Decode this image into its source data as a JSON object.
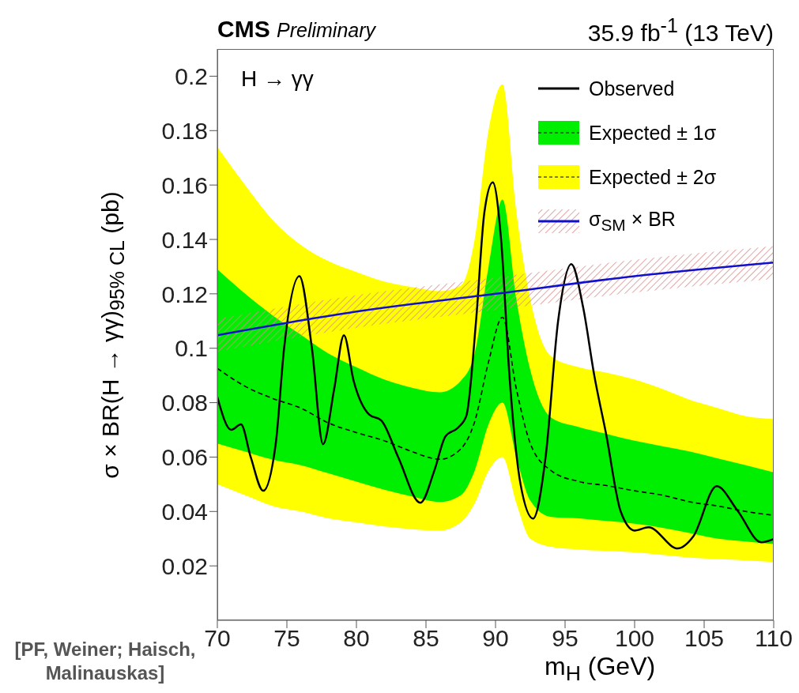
{
  "chart_data": {
    "type": "line",
    "title": "CMS",
    "subtitle": "Preliminary",
    "xlabel": "m$_{H}$ (GeV)",
    "ylabel": "σ × BR(H → γγ)$_{95% CL}$ (pb)",
    "annotations": [
      "35.9 fb$^{-1}$ (13 TeV)",
      "H → γγ",
      "[PF, Weiner; Haisch, Malinauskas]"
    ],
    "xlim": [
      70,
      110
    ],
    "xticks": [
      70,
      75,
      80,
      85,
      90,
      95,
      100,
      105,
      110
    ],
    "ylim": [
      0,
      0.21
    ],
    "yticks": [
      0.02,
      0.04,
      0.06,
      0.08,
      0.1,
      0.12,
      0.14,
      0.16,
      0.18,
      0.2
    ],
    "grid": false,
    "legend": "top right",
    "marker": "none",
    "series": [
      {
        "name": "Observed",
        "line_style": "solid",
        "color": "#000000",
        "x": [
          70,
          71.0,
          71.7,
          72.4,
          73.3,
          74.2,
          74.8,
          75.9,
          76.8,
          77.6,
          78.4,
          79.1,
          79.8,
          80.9,
          81.8,
          83.0,
          84.6,
          85.6,
          86.4,
          87.3,
          87.9,
          88.6,
          89.2,
          89.8,
          90.4,
          91.0,
          91.8,
          92.7,
          93.6,
          94.5,
          95.45,
          96.3,
          97.1,
          97.95,
          99.0,
          100,
          101,
          103.1,
          104.2,
          105.9,
          107.4,
          109.1,
          110
        ],
        "values": [
          0.082,
          0.07,
          0.072,
          0.06,
          0.0476,
          0.065,
          0.1,
          0.1265,
          0.1,
          0.0647,
          0.085,
          0.1048,
          0.088,
          0.0757,
          0.0734,
          0.06,
          0.0432,
          0.055,
          0.0676,
          0.0708,
          0.0751,
          0.11,
          0.15,
          0.161,
          0.14,
          0.09,
          0.05,
          0.0374,
          0.06,
          0.11,
          0.1309,
          0.115,
          0.09,
          0.0685,
          0.04,
          0.033,
          0.0342,
          0.0264,
          0.0307,
          0.0493,
          0.0403,
          0.0287,
          0.0299
        ]
      },
      {
        "line_style": "dashed",
        "color": "#000000",
        "x": [
          70,
          72,
          74,
          76,
          78,
          80,
          82,
          84,
          86,
          87.5,
          88.5,
          89.5,
          90.5,
          91.5,
          92.5,
          94,
          96,
          98,
          100,
          102,
          104,
          106,
          108,
          110
        ],
        "values": [
          0.0926,
          0.086,
          0.0815,
          0.078,
          0.0725,
          0.069,
          0.066,
          0.062,
          0.0592,
          0.063,
          0.073,
          0.095,
          0.1114,
          0.085,
          0.065,
          0.055,
          0.051,
          0.0495,
          0.0476,
          0.046,
          0.0435,
          0.042,
          0.04,
          0.0386
        ]
      },
      {
        "name": "Expected ± 1σ",
        "color": "#00ee00",
        "x": [
          70,
          72,
          74,
          76,
          78,
          80,
          82,
          84,
          86,
          87.5,
          88.5,
          89.5,
          90.5,
          91.5,
          92.5,
          94,
          96,
          98,
          100,
          102,
          104,
          106,
          108,
          110
        ],
        "values": [
          null,
          null,
          null,
          null,
          null,
          null,
          null,
          null,
          null,
          null,
          null,
          null,
          null,
          null,
          null,
          null,
          null,
          null,
          null,
          null,
          null,
          null,
          null,
          null
        ],
        "upper": [
          0.129,
          0.12,
          0.112,
          0.105,
          0.098,
          0.093,
          0.0885,
          0.0855,
          0.0838,
          0.088,
          0.098,
          0.13,
          0.1547,
          0.118,
          0.092,
          0.0745,
          0.071,
          0.0685,
          0.066,
          0.064,
          0.062,
          0.0595,
          0.057,
          0.0544
        ],
        "lower": [
          0.065,
          0.062,
          0.059,
          0.057,
          0.054,
          0.051,
          0.048,
          0.0455,
          0.0435,
          0.046,
          0.055,
          0.072,
          0.08,
          0.06,
          0.044,
          0.038,
          0.0375,
          0.0365,
          0.0355,
          0.034,
          0.032,
          0.03,
          0.029,
          0.028
        ]
      },
      {
        "name": "Expected ± 2σ",
        "color": "#ffff00",
        "x": [
          70,
          72,
          74,
          76,
          78,
          80,
          82,
          84,
          86,
          87.5,
          88.5,
          89.5,
          90.5,
          91.5,
          92.5,
          94,
          96,
          98,
          100,
          102,
          104,
          106,
          108,
          110
        ],
        "values": [
          null,
          null,
          null,
          null,
          null,
          null,
          null,
          null,
          null,
          null,
          null,
          null,
          null,
          null,
          null,
          null,
          null,
          null,
          null,
          null,
          null,
          null,
          null,
          null
        ],
        "upper": [
          0.174,
          0.16,
          0.147,
          0.138,
          0.132,
          0.128,
          0.1245,
          0.1225,
          0.121,
          0.123,
          0.14,
          0.18,
          0.197,
          0.15,
          0.118,
          0.097,
          0.093,
          0.091,
          0.0885,
          0.085,
          0.081,
          0.078,
          0.075,
          0.074
        ],
        "lower": [
          0.05,
          0.046,
          0.042,
          0.04,
          0.0375,
          0.036,
          0.0345,
          0.0335,
          0.033,
          0.036,
          0.043,
          0.055,
          0.06,
          0.043,
          0.03,
          0.027,
          0.026,
          0.0255,
          0.025,
          0.024,
          0.023,
          0.0225,
          0.022,
          0.0214
        ]
      },
      {
        "name": "σ$_{SM}$ × BR",
        "line_style": "solid",
        "color": "#1010cc",
        "x": [
          70,
          80,
          90,
          100,
          110
        ],
        "values": [
          0.1048,
          0.1135,
          0.12,
          0.1265,
          0.1315
        ],
        "lower": [
          0.0988,
          0.1075,
          0.114,
          0.1205,
          0.1255
        ],
        "upper": [
          0.1108,
          0.1195,
          0.126,
          0.1325,
          0.1375
        ]
      }
    ]
  }
}
